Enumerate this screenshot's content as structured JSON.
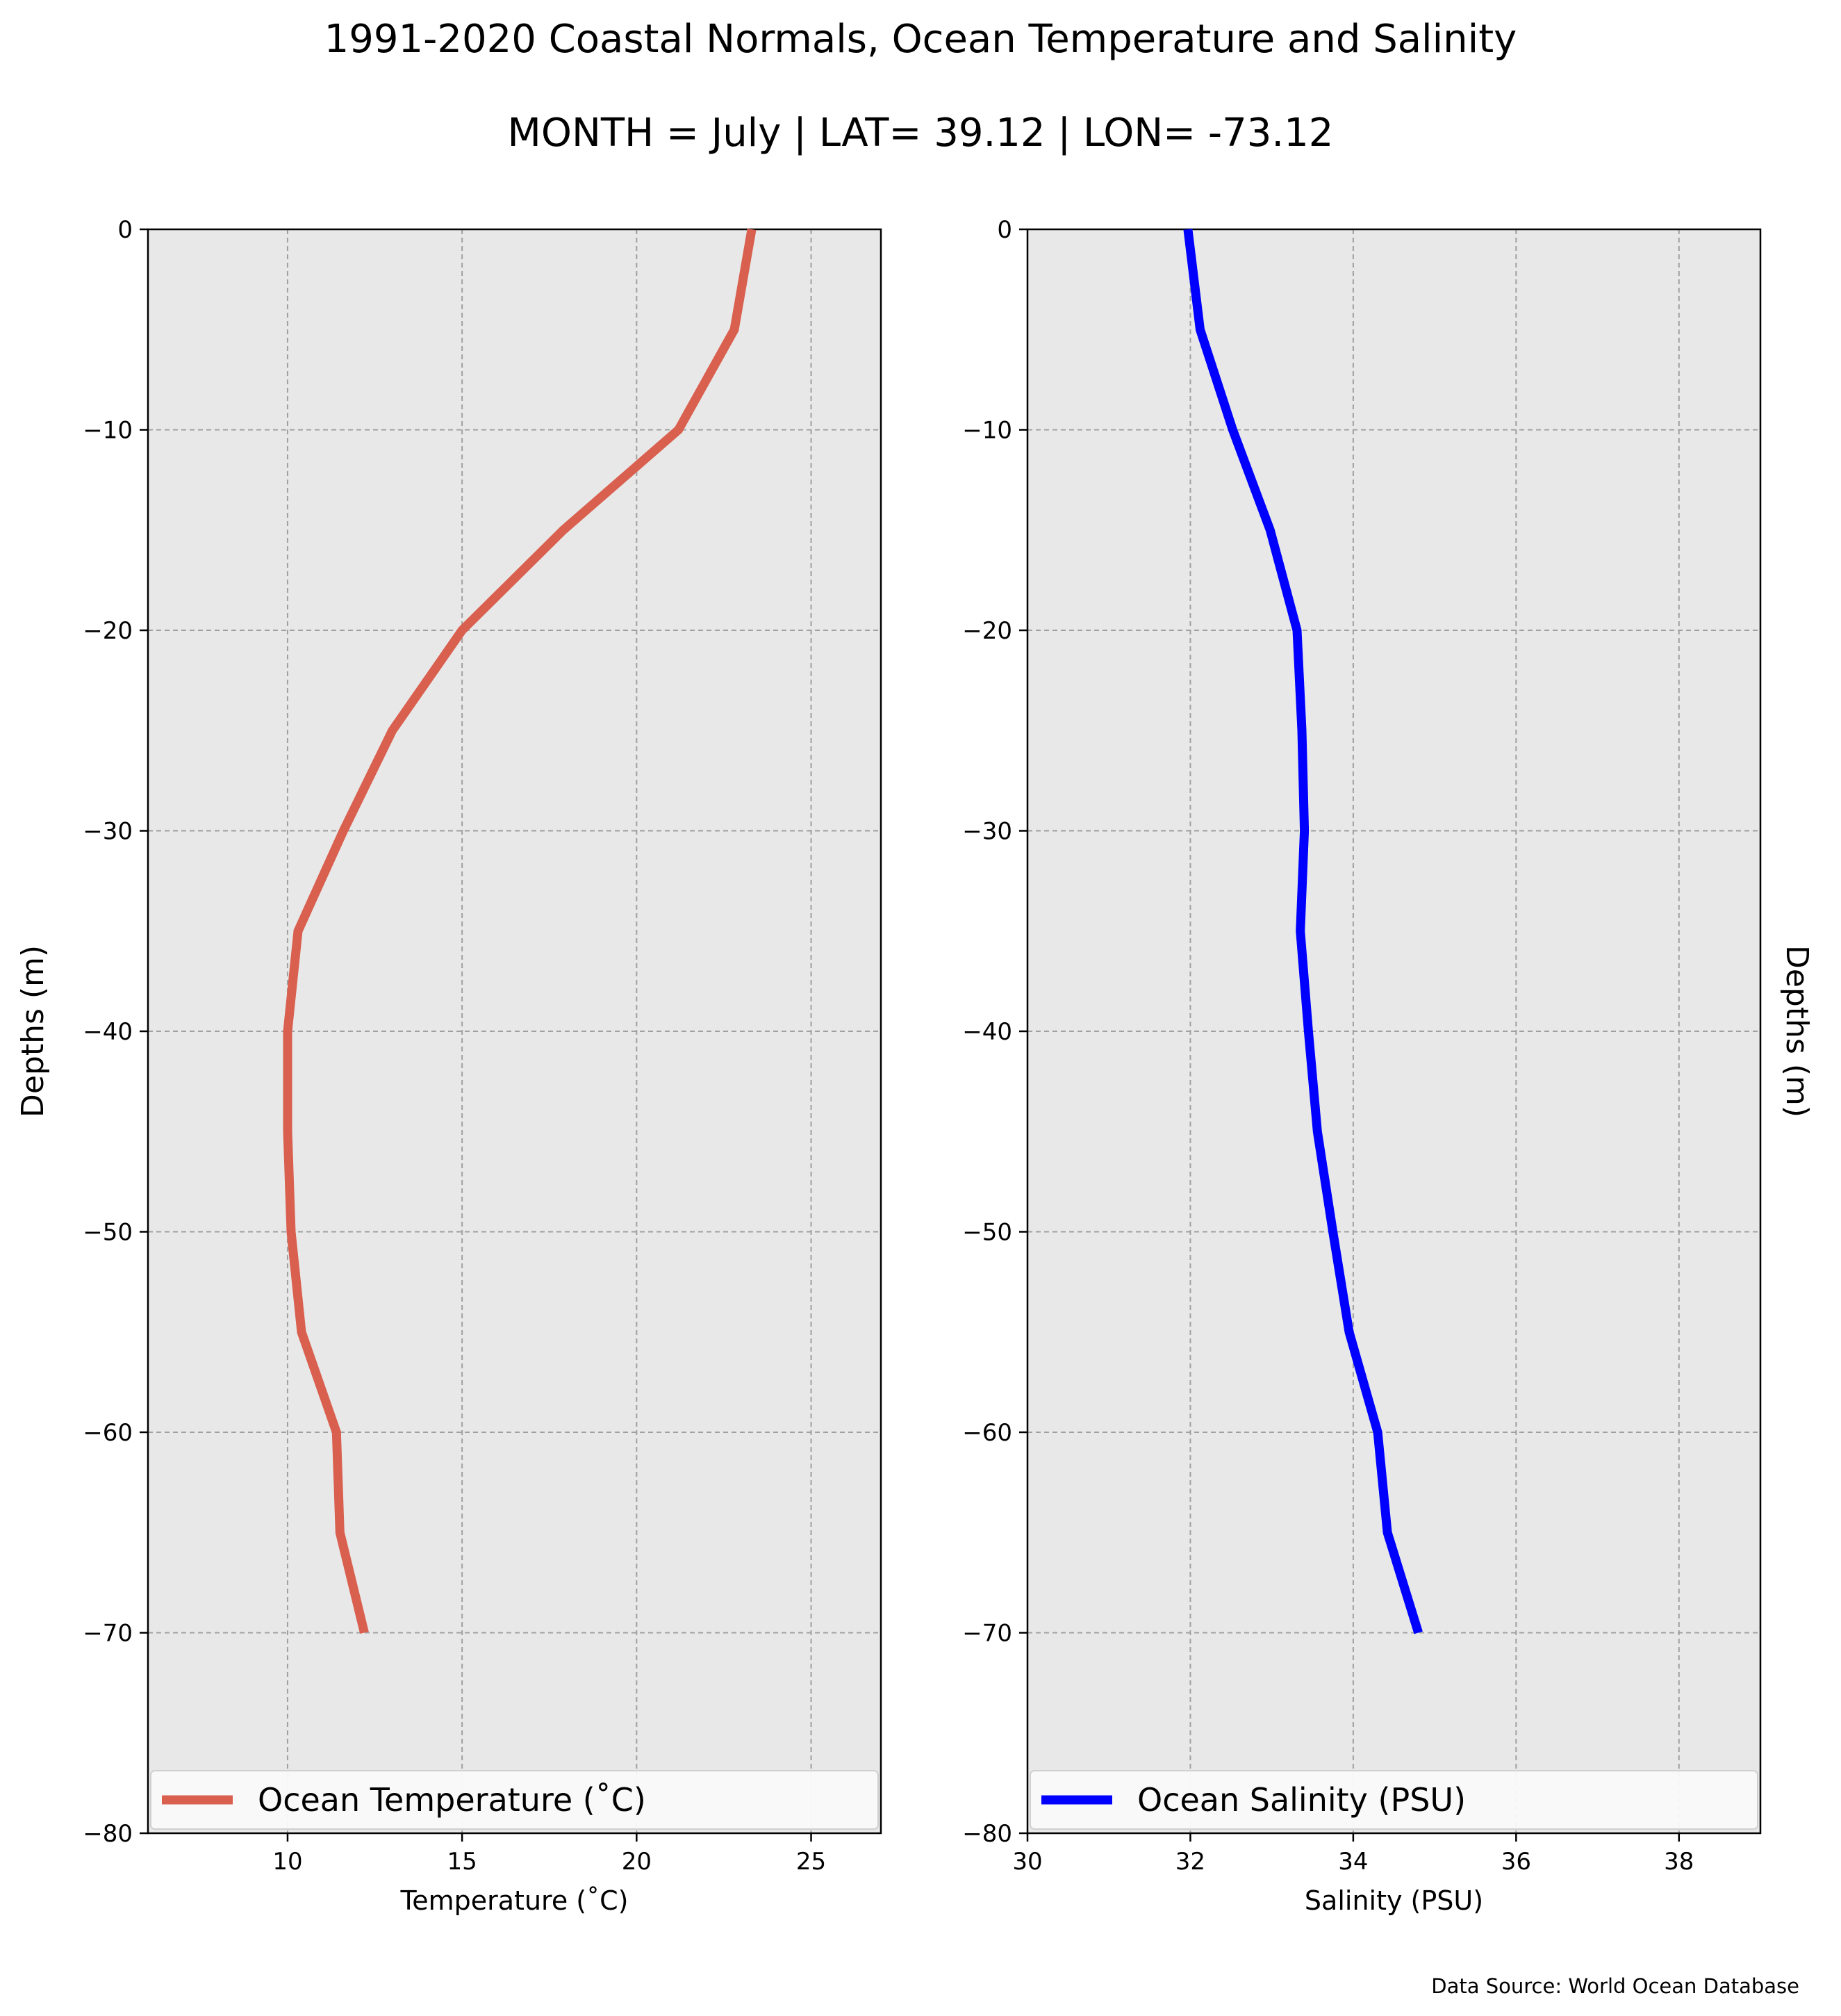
{
  "figure": {
    "title": "1991-2020 Coastal Normals, Ocean Temperature and Salinity",
    "subtitle": "MONTH = July | LAT= 39.12 | LON= -73.12",
    "source": "Data Source: World Ocean Database"
  },
  "chart_data": [
    {
      "type": "line",
      "xlabel": "Temperature ($^\\circ$C)",
      "xlabel_display": "Temperature (˚C)",
      "ylabel": "Depths (m)",
      "xlim": [
        6,
        27
      ],
      "ylim": [
        -80,
        0
      ],
      "xticks": [
        10,
        15,
        20,
        25
      ],
      "xtick_labels": [
        "10",
        "15",
        "20",
        "25"
      ],
      "yticks": [
        0,
        -10,
        -20,
        -30,
        -40,
        -50,
        -60,
        -70,
        -80
      ],
      "ytick_labels": [
        "0",
        "−10",
        "−20",
        "−30",
        "−40",
        "−50",
        "−60",
        "−70",
        "−80"
      ],
      "ylabel_side": "left",
      "grid": true,
      "legend_placement": "lower center",
      "background_color": "#e8e8e8",
      "series": [
        {
          "name": "Ocean Temperature (˚C)",
          "color": "#d95f4e",
          "x": [
            23.3,
            22.8,
            21.2,
            17.9,
            15.0,
            13.0,
            11.6,
            10.3,
            10.0,
            10.0,
            10.1,
            10.4,
            11.4,
            11.5,
            12.2
          ],
          "y": [
            0,
            -5,
            -10,
            -15,
            -20,
            -25,
            -30,
            -35,
            -40,
            -45,
            -50,
            -55,
            -60,
            -65,
            -70
          ]
        }
      ]
    },
    {
      "type": "line",
      "xlabel": "Salinity (PSU)",
      "ylabel": "Depths (m)",
      "xlim": [
        30,
        39
      ],
      "ylim": [
        -80,
        0
      ],
      "xticks": [
        30,
        32,
        34,
        36,
        38
      ],
      "xtick_labels": [
        "30",
        "32",
        "34",
        "36",
        "38"
      ],
      "yticks": [
        0,
        -10,
        -20,
        -30,
        -40,
        -50,
        -60,
        -70,
        -80
      ],
      "ytick_labels": [
        "0",
        "−10",
        "−20",
        "−30",
        "−40",
        "−50",
        "−60",
        "−70",
        "−80"
      ],
      "ylabel_side": "right",
      "grid": true,
      "legend_placement": "lower center",
      "background_color": "#e8e8e8",
      "series": [
        {
          "name": "Ocean Salinity (PSU)",
          "color": "#0000ff",
          "x": [
            31.97,
            32.12,
            32.52,
            32.98,
            33.31,
            33.37,
            33.4,
            33.35,
            33.45,
            33.56,
            33.75,
            33.95,
            34.3,
            34.42,
            34.8
          ],
          "y": [
            0,
            -5,
            -10,
            -15,
            -20,
            -25,
            -30,
            -35,
            -40,
            -45,
            -50,
            -55,
            -60,
            -65,
            -70
          ]
        }
      ]
    }
  ]
}
